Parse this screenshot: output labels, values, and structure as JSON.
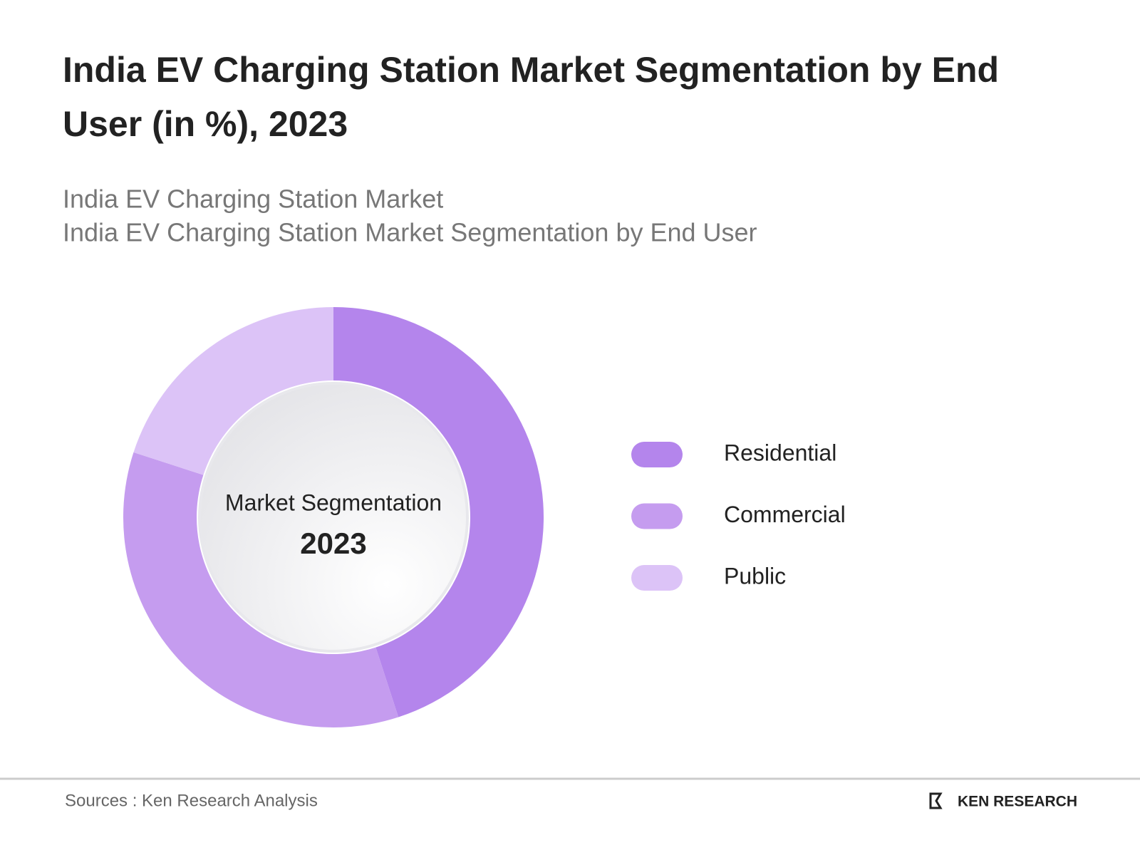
{
  "chart_data": {
    "type": "donut",
    "title": "India EV Charging Station Market Segmentation by End User (in %), 2023",
    "subtitle": [
      "India EV Charging Station Market",
      "India EV Charging Station Market Segmentation by End User"
    ],
    "center_label": "Market Segmentation",
    "center_value": "2023",
    "categories": [
      "Residential",
      "Commercial",
      "Public"
    ],
    "values": [
      45,
      35,
      20
    ],
    "colors": [
      "#b485ec",
      "#c59cef",
      "#dcc3f7"
    ],
    "legend": "right"
  },
  "footer": {
    "source": "Sources : Ken Research Analysis",
    "logo": "KEN RESEARCH"
  }
}
